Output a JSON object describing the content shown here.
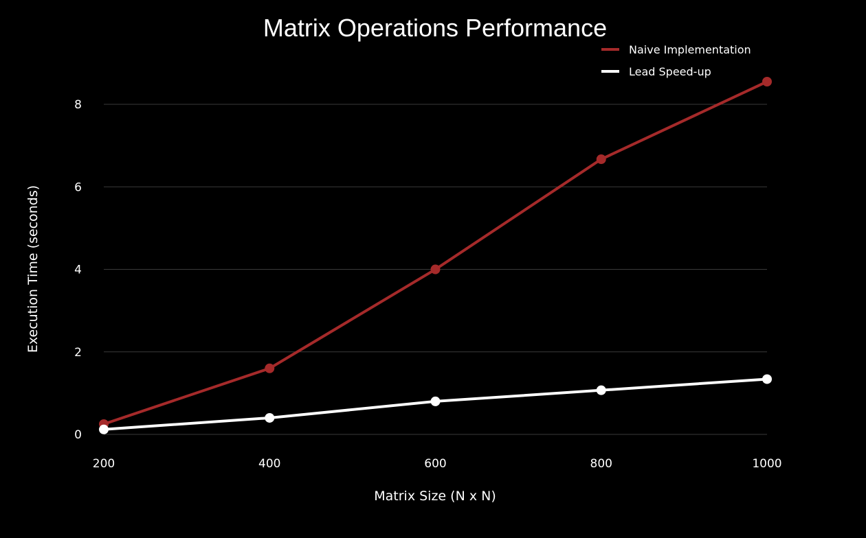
{
  "chart_data": {
    "type": "line",
    "title": "Matrix Operations Performance",
    "xlabel": "Matrix Size (N x N)",
    "ylabel": "Execution Time (seconds)",
    "x": [
      200,
      400,
      600,
      800,
      1000
    ],
    "xlim": [
      200,
      1000
    ],
    "ylim": [
      0,
      8.5
    ],
    "x_ticks": [
      "200",
      "400",
      "600",
      "800",
      "1000"
    ],
    "y_ticks": [
      "0",
      "2",
      "4",
      "6",
      "8"
    ],
    "grid": "horizontal",
    "legend_position": "top-right",
    "background": "#000000",
    "series": [
      {
        "name": "Naive Implementation",
        "color": "#a52a2a",
        "values": [
          0.25,
          1.6,
          4.0,
          6.67,
          8.55
        ]
      },
      {
        "name": "Lead Speed-up",
        "color": "#ffffff",
        "values": [
          0.12,
          0.4,
          0.8,
          1.07,
          1.34
        ]
      }
    ]
  }
}
